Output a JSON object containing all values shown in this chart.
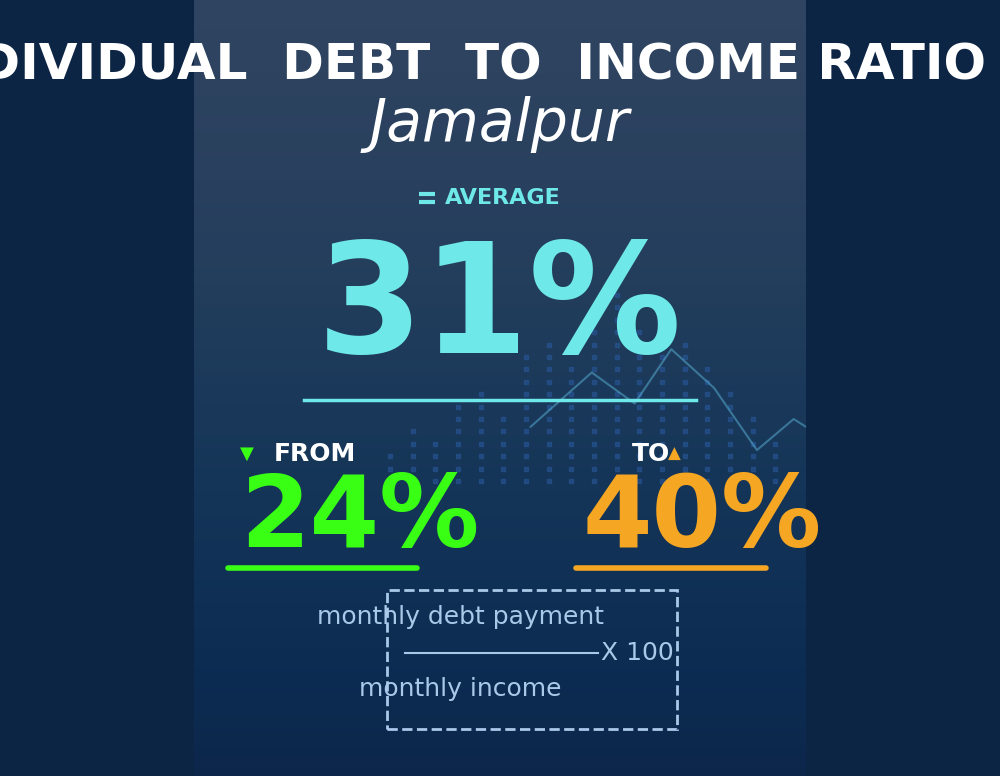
{
  "title_line1": "INDIVIDUAL  DEBT  TO  INCOME RATIO  IN",
  "title_line2": "Jamalpur",
  "avg_label": "AVERAGE",
  "avg_value": "31%",
  "from_label": "FROM",
  "from_value": "24%",
  "to_label": "TO",
  "to_value": "40%",
  "formula_numerator": "monthly debt payment",
  "formula_denominator": "monthly income",
  "formula_multiplier": "X 100",
  "bg_color": "#0d2545",
  "avg_color": "#6ee8e8",
  "from_color": "#39ff14",
  "to_color": "#f5a623",
  "white_color": "#ffffff",
  "formula_text_color": "#aac8e8",
  "title_fontsize": 36,
  "subtitle_fontsize": 42,
  "avg_label_fontsize": 16,
  "avg_value_fontsize": 110,
  "from_to_label_fontsize": 18,
  "from_to_value_fontsize": 72,
  "formula_fontsize": 18
}
